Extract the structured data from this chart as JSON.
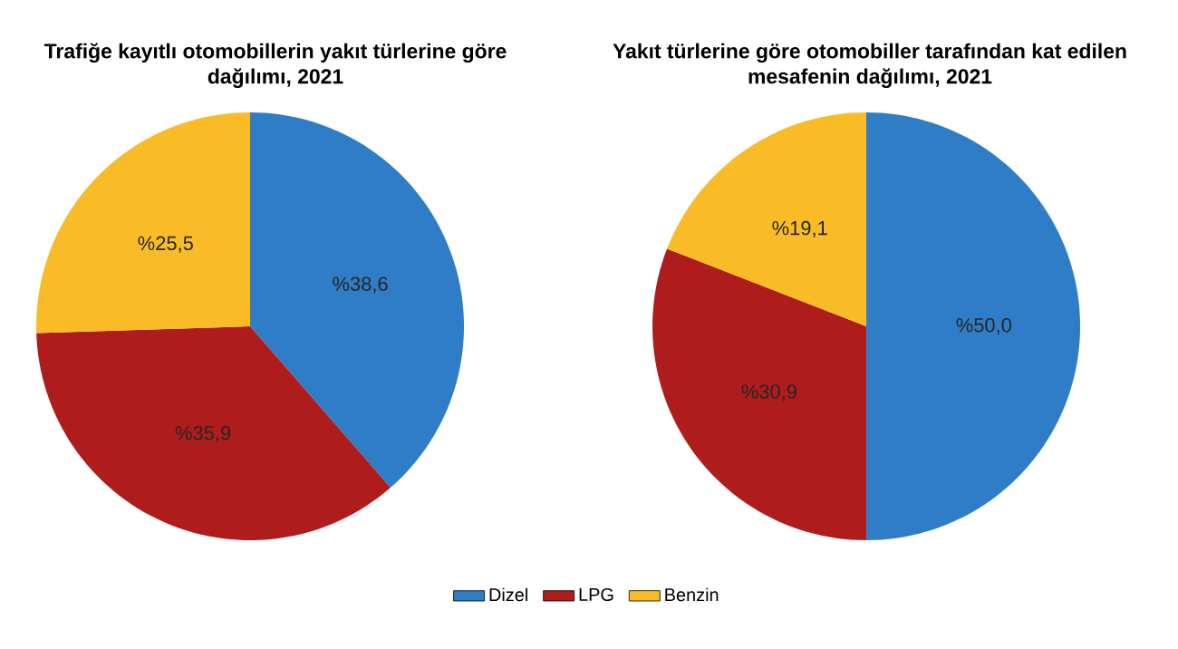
{
  "chart_data": [
    {
      "type": "pie",
      "title": "Trafiğe kayıtlı otomobillerin yakıt türlerine göre dağılımı, 2021",
      "categories": [
        "Dizel",
        "LPG",
        "Benzin"
      ],
      "values": [
        38.6,
        35.9,
        25.5
      ],
      "value_labels": [
        "%38,6",
        "%35,9",
        "%25,5"
      ],
      "colors": [
        "#2e7dc6",
        "#ae1c1c",
        "#f9bc26"
      ],
      "legend": "bottom"
    },
    {
      "type": "pie",
      "title": "Yakıt türlerine göre otomobiller tarafından kat edilen mesafenin dağılımı, 2021",
      "categories": [
        null,
        null,
        null
      ],
      "values": [
        50.0,
        30.9,
        19.1
      ],
      "value_labels": [
        "%50,0",
        "%30,9",
        "%19,1"
      ],
      "colors": [
        "#2e7dc6",
        "#ae1c1c",
        "#f9bc26"
      ]
    }
  ]
}
